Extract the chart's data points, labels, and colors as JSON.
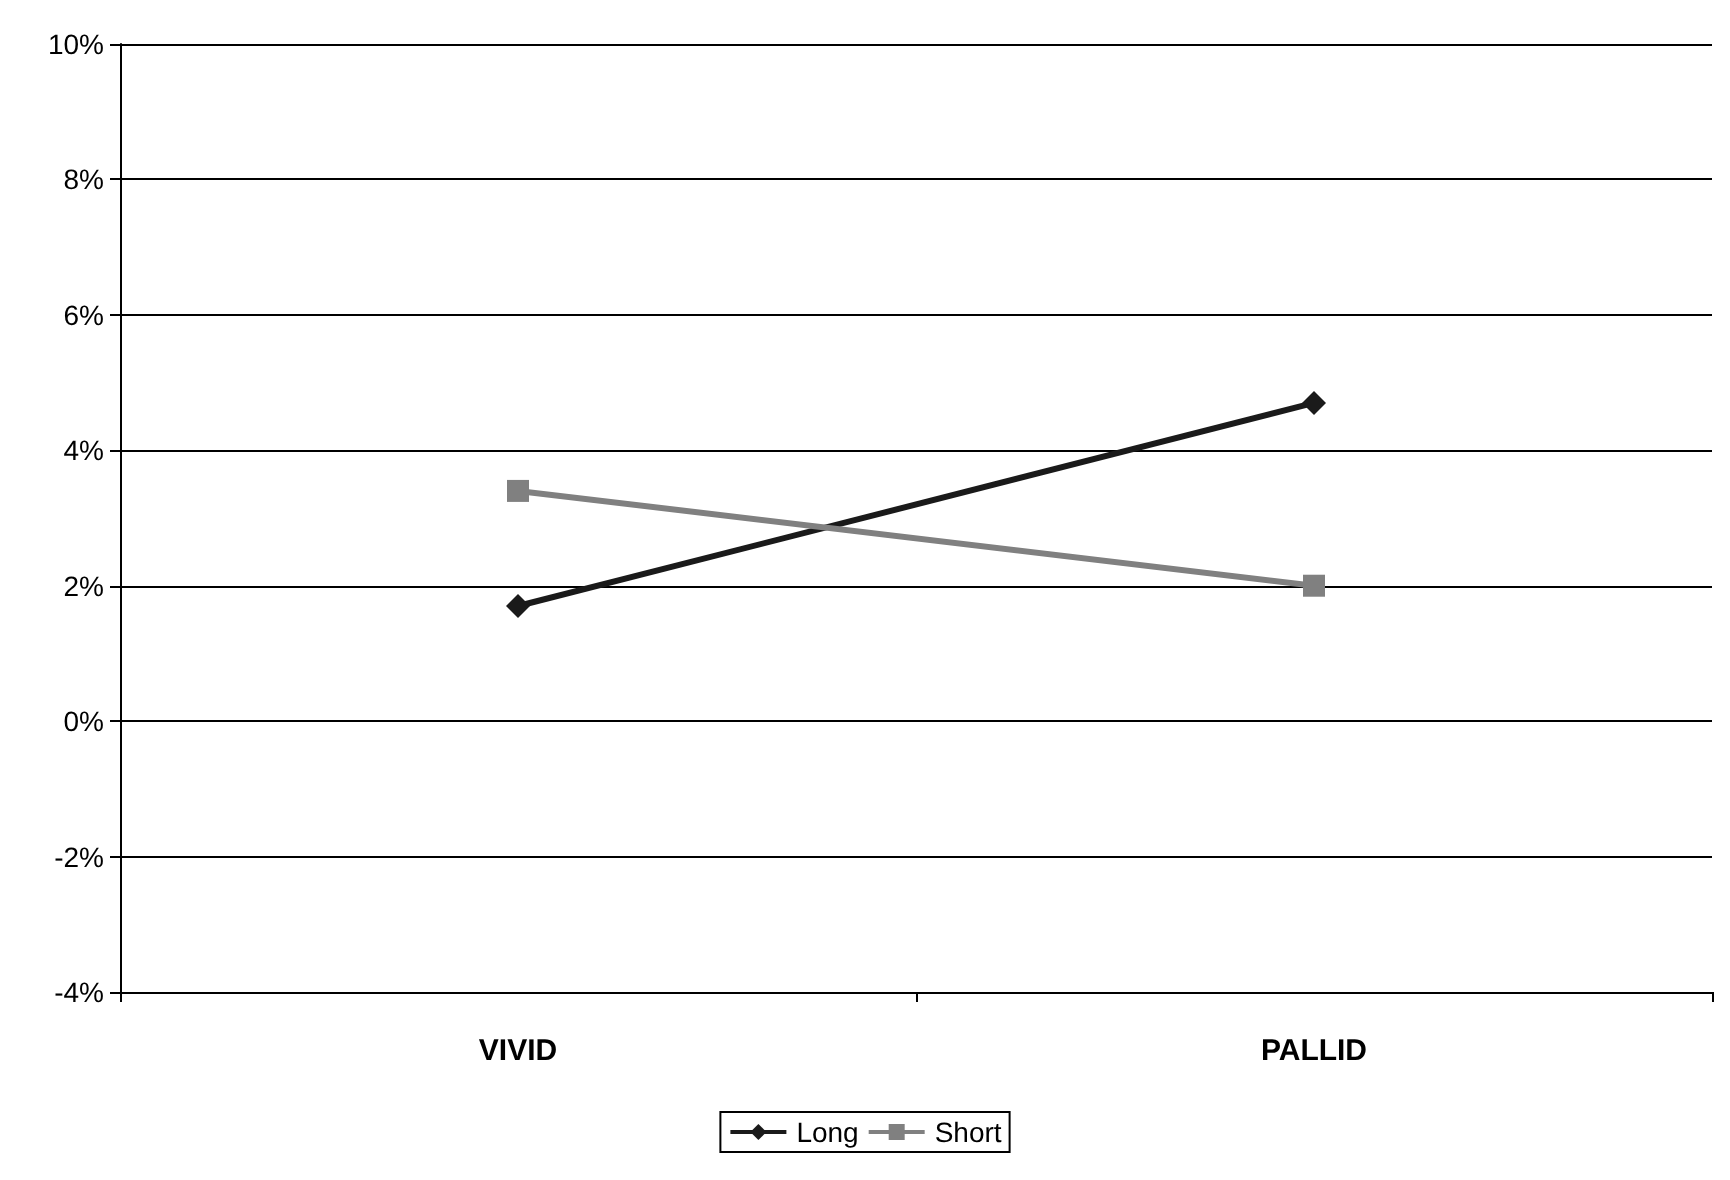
{
  "chart_data": {
    "type": "line",
    "categories": [
      "VIVID",
      "PALLID"
    ],
    "series": [
      {
        "name": "Long",
        "color": "#1a1a1a",
        "values": [
          1.7,
          4.7
        ],
        "marker": "diamond"
      },
      {
        "name": "Short",
        "color": "#808080",
        "values": [
          3.4,
          2.0
        ],
        "marker": "square"
      }
    ],
    "ylim": [
      -4,
      10
    ],
    "yticks": [
      {
        "value": -4,
        "label": "-4%"
      },
      {
        "value": -2,
        "label": "-2%"
      },
      {
        "value": 0,
        "label": "0%"
      },
      {
        "value": 2,
        "label": "2%"
      },
      {
        "value": 4,
        "label": "4%"
      },
      {
        "value": 6,
        "label": "6%"
      },
      {
        "value": 8,
        "label": "8%"
      },
      {
        "value": 10,
        "label": "10%"
      }
    ],
    "grid": "y",
    "legend": "bottom",
    "line_style": "solid"
  }
}
